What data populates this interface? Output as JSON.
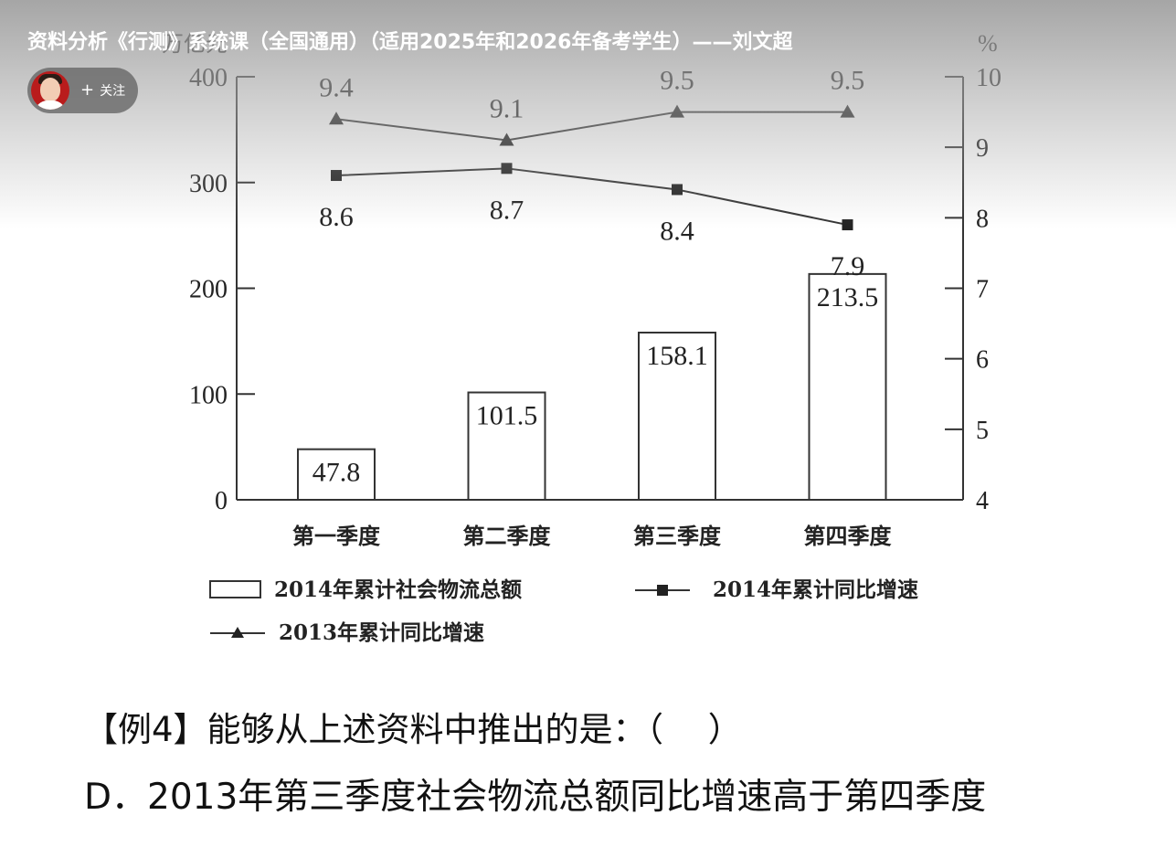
{
  "video": {
    "title": "资料分析《行测》系统课（全国通用）（适用2025年和2026年备考学生）——刘文超",
    "follow_label": "关注",
    "follow_icon": "plus-icon"
  },
  "chart_data": {
    "type": "bar+line",
    "categories": [
      "第一季度",
      "第二季度",
      "第三季度",
      "第四季度"
    ],
    "left_axis": {
      "unit_label": "万亿元",
      "ticks": [
        "0",
        "100",
        "200",
        "300",
        "400"
      ],
      "range": [
        0,
        400
      ]
    },
    "right_axis": {
      "unit_label": "%",
      "ticks": [
        "4",
        "5",
        "6",
        "7",
        "8",
        "9",
        "10"
      ],
      "range": [
        4,
        10
      ]
    },
    "series": [
      {
        "name": "2014年累计社会物流总额",
        "kind": "bar",
        "values": [
          47.8,
          101.5,
          158.1,
          213.5
        ],
        "labels": [
          "47.8",
          "101.5",
          "158.1",
          "213.5"
        ]
      },
      {
        "name": "2014年累计同比增速",
        "kind": "line",
        "marker": "square",
        "values": [
          8.6,
          8.7,
          8.4,
          7.9
        ],
        "labels": [
          "8.6",
          "8.7",
          "8.4",
          "7.9"
        ]
      },
      {
        "name": "2013年累计同比增速",
        "kind": "line",
        "marker": "triangle",
        "values": [
          9.4,
          9.1,
          9.5,
          9.5
        ],
        "labels": [
          "9.4",
          "9.1",
          "9.5",
          "9.5"
        ]
      }
    ],
    "legend_position": "bottom"
  },
  "question": {
    "stem": "【例4】能够从上述资料中推出的是：（　 ）",
    "option_d": "D．2013年第三季度社会物流总额同比增速高于第四季度"
  }
}
